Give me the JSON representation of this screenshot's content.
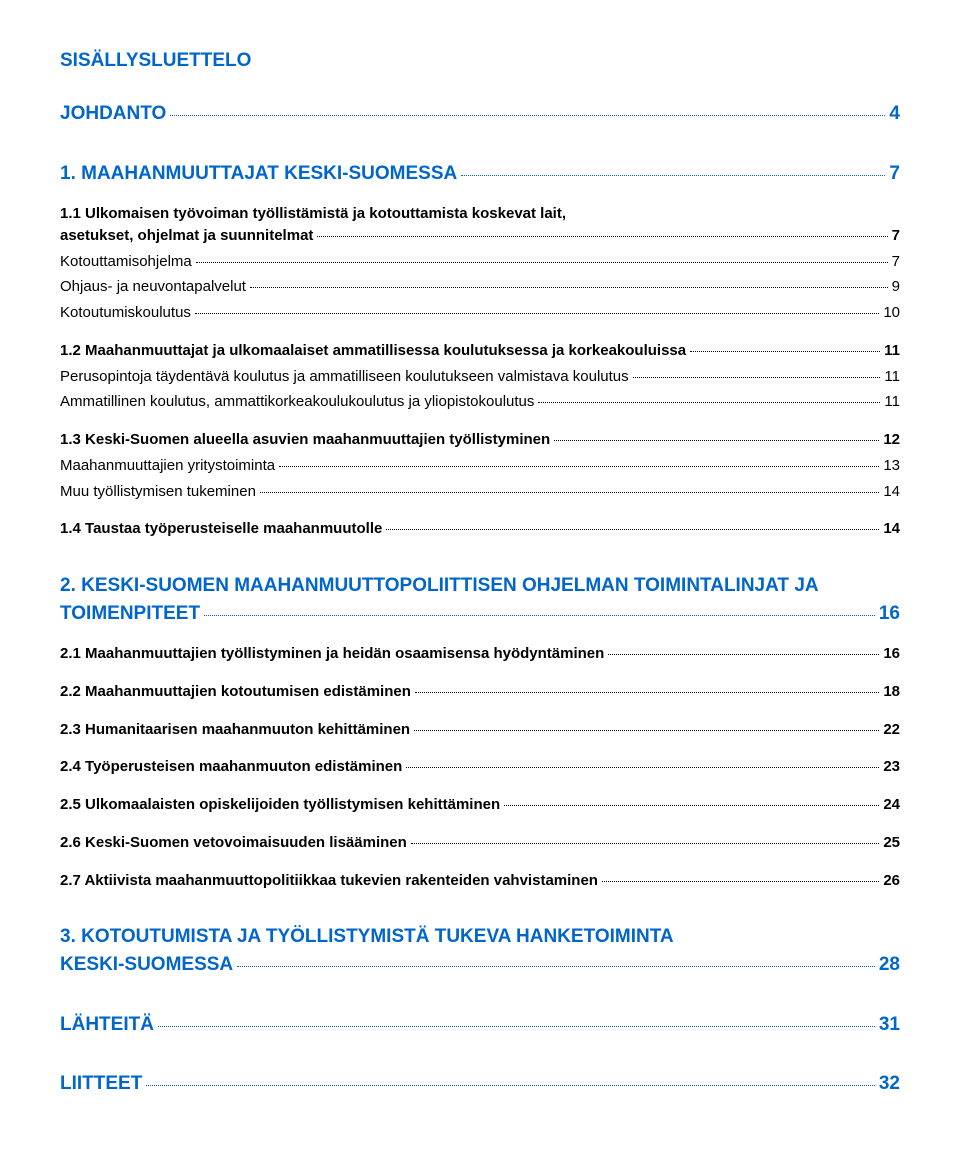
{
  "title": "SISÄLLYSLUETTELO",
  "entries": [
    {
      "level": 1,
      "label": "JOHDANTO",
      "page": "4",
      "gap_after": "gap-xl"
    },
    {
      "level": 1,
      "label": "1.   MAAHANMUUTTAJAT KESKI-SUOMESSA",
      "page": "7",
      "gap_after": "gap-m"
    },
    {
      "level": 2,
      "label": "1.1  Ulkomaisen työvoiman työllistämistä ja kotouttamista koskevat lait, asetukset, ohjelmat ja suunnitelmat",
      "page": "7",
      "gap_after": "gap-zero",
      "wrap": true
    },
    {
      "level": 3,
      "label": "Kotouttamisohjelma",
      "page": "7",
      "gap_after": "gap-zero"
    },
    {
      "level": 3,
      "label": "Ohjaus- ja neuvontapalvelut",
      "page": "9",
      "gap_after": "gap-zero"
    },
    {
      "level": 3,
      "label": "Kotoutumiskoulutus",
      "page": "10",
      "gap_after": "gap-m"
    },
    {
      "level": 2,
      "label": "1.2  Maahanmuuttajat ja ulkomaalaiset ammatillisessa koulutuksessa ja korkeakouluissa",
      "page": "11",
      "gap_after": "gap-zero"
    },
    {
      "level": 3,
      "label": "Perusopintoja täydentävä koulutus ja ammatilliseen koulutukseen valmistava koulutus",
      "page": "11",
      "gap_after": "gap-zero"
    },
    {
      "level": 3,
      "label": "Ammatillinen koulutus, ammattikorkeakoulukoulutus ja yliopistokoulutus",
      "page": "11",
      "gap_after": "gap-m"
    },
    {
      "level": 2,
      "label": "1.3  Keski-Suomen alueella asuvien maahanmuuttajien työllistyminen",
      "page": "12",
      "gap_after": "gap-zero"
    },
    {
      "level": 3,
      "label": "Maahanmuuttajien yritystoiminta",
      "page": "13",
      "gap_after": "gap-zero"
    },
    {
      "level": 3,
      "label": "Muu työllistymisen tukeminen",
      "page": "14",
      "gap_after": "gap-m"
    },
    {
      "level": 2,
      "label": "1.4  Taustaa työperusteiselle maahanmuutolle",
      "page": "14",
      "gap_after": "gap-xl"
    },
    {
      "level": 1,
      "label": "2.   KESKI-SUOMEN MAAHANMUUTTOPOLIITTISEN OHJELMAN TOIMINTALINJAT JA TOIMENPITEET",
      "page": "16",
      "gap_after": "gap-m",
      "wrap": true
    },
    {
      "level": 2,
      "label": "2.1  Maahanmuuttajien työllistyminen ja heidän osaamisensa hyödyntäminen",
      "page": "16",
      "gap_after": "gap-m"
    },
    {
      "level": 2,
      "label": "2.2  Maahanmuuttajien kotoutumisen edistäminen",
      "page": "18",
      "gap_after": "gap-m"
    },
    {
      "level": 2,
      "label": "2.3  Humanitaarisen maahanmuuton kehittäminen",
      "page": "22",
      "gap_after": "gap-m"
    },
    {
      "level": 2,
      "label": "2.4  Työperusteisen maahanmuuton edistäminen",
      "page": "23",
      "gap_after": "gap-m"
    },
    {
      "level": 2,
      "label": "2.5  Ulkomaalaisten opiskelijoiden työllistymisen kehittäminen",
      "page": "24",
      "gap_after": "gap-m"
    },
    {
      "level": 2,
      "label": "2.6  Keski-Suomen vetovoimaisuuden lisääminen",
      "page": "25",
      "gap_after": "gap-m"
    },
    {
      "level": 2,
      "label": "2.7  Aktiivista maahanmuuttopolitiikkaa tukevien rakenteiden vahvistaminen",
      "page": "26",
      "gap_after": "gap-xl"
    },
    {
      "level": 1,
      "label": "3.   KOTOUTUMISTA JA TYÖLLISTYMISTÄ TUKEVA HANKETOIMINTA KESKI-SUOMESSA",
      "page": "28",
      "gap_after": "gap-xl",
      "wrap": true
    },
    {
      "level": 1,
      "label": "LÄHTEITÄ",
      "page": "31",
      "gap_after": "gap-xl"
    },
    {
      "level": 1,
      "label": "LIITTEET",
      "page": "32",
      "gap_after": "gap-zero"
    }
  ]
}
